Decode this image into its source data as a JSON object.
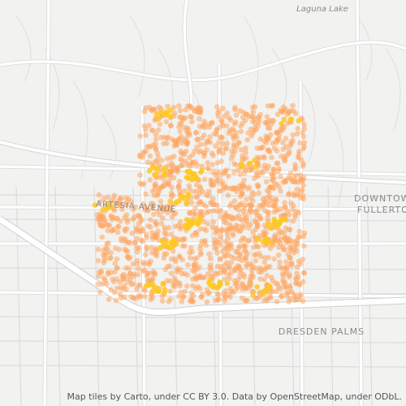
{
  "map": {
    "labels": {
      "lake": "Laguna Lake",
      "avenue": "ARTESIA AVENUE",
      "downtown": [
        "DOWNTOWN",
        "FULLERTON"
      ],
      "district": "DRESDEN PALMS"
    },
    "attribution": "Map tiles by Carto, under CC BY 3.0. Data by OpenStreetMap, under ODbL."
  }
}
